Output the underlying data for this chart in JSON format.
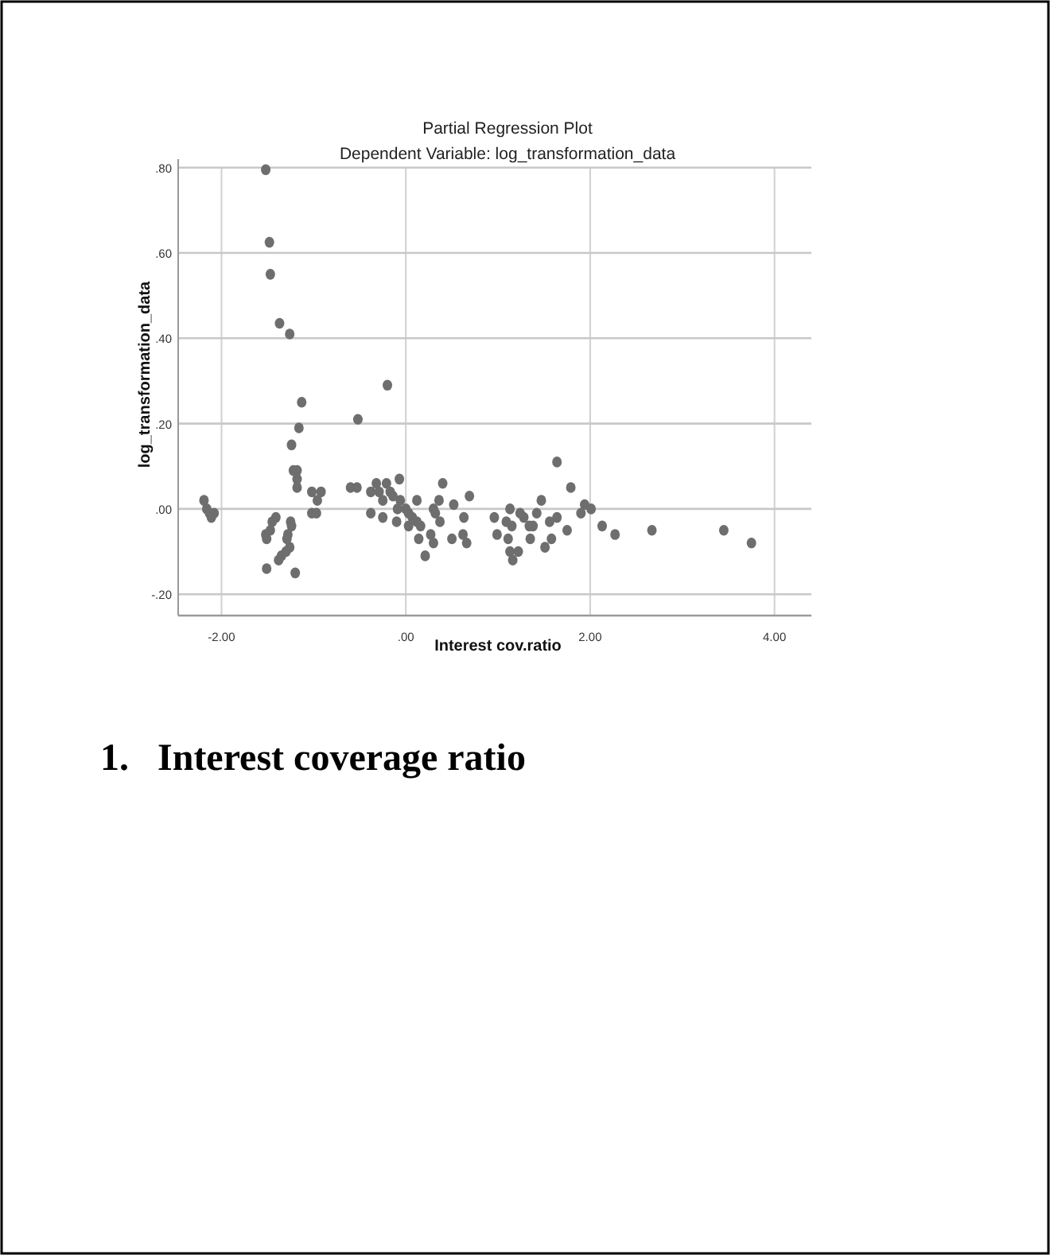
{
  "chart_data": {
    "type": "scatter",
    "title": "Partial Regression Plot",
    "subtitle": "Dependent Variable: log_transformation_data",
    "xlabel": "Interest cov.ratio",
    "ylabel": "log_transformation_data",
    "annotations": [
      "1.   Interest coverage ratio"
    ],
    "xlim": [
      -2.47,
      4.4
    ],
    "ylim": [
      -0.25,
      0.82
    ],
    "xticks": [
      {
        "value": -2,
        "label": "-2.00"
      },
      {
        "value": 0,
        "label": ".00"
      },
      {
        "value": 2,
        "label": "2.00"
      },
      {
        "value": 4,
        "label": "4.00"
      }
    ],
    "yticks": [
      {
        "value": -0.2,
        "label": "-.20"
      },
      {
        "value": 0,
        "label": ".00"
      },
      {
        "value": 0.2,
        "label": ".20"
      },
      {
        "value": 0.4,
        "label": ".40"
      },
      {
        "value": 0.6,
        "label": ".60"
      },
      {
        "value": 0.8,
        "label": ".80"
      }
    ],
    "grid": true,
    "marker": "circle",
    "series": [
      {
        "color": "#6e6e6e",
        "x": [
          -1.52,
          -1.48,
          -1.47,
          -1.37,
          -1.26,
          -0.2,
          -1.13,
          -0.52,
          -1.16,
          -1.24,
          -1.22,
          -1.18,
          -1.18,
          -1.18,
          -2.19,
          -2.16,
          -2.13,
          -2.08,
          -2.11,
          -1.02,
          -0.92,
          -0.96,
          -1.02,
          -0.97,
          -1.41,
          -1.45,
          -1.47,
          -1.52,
          -1.51,
          -1.25,
          -1.24,
          -1.28,
          -1.29,
          -1.26,
          -1.3,
          -1.35,
          -1.38,
          -1.51,
          -1.2,
          -0.6,
          -0.53,
          -0.38,
          -0.32,
          -0.29,
          -0.21,
          -0.07,
          -0.38,
          -0.25,
          -0.17,
          -0.14,
          -0.25,
          -0.1,
          -0.06,
          -0.09,
          0,
          0.03,
          0.07,
          0.12,
          0.03,
          0.12,
          0.16,
          0.14,
          0.21,
          0.27,
          0.3,
          0.3,
          0.36,
          0.4,
          0.37,
          0.32,
          0.52,
          0.5,
          0.63,
          0.62,
          0.66,
          0.69,
          1.64,
          1.79,
          1.47,
          0.96,
          0.99,
          1.09,
          1.13,
          1.15,
          1.11,
          1.13,
          1.16,
          1.22,
          1.24,
          1.28,
          1.34,
          1.38,
          1.35,
          1.42,
          1.51,
          1.56,
          1.58,
          1.64,
          1.75,
          1.9,
          1.94,
          2.01,
          2.13,
          2.27,
          2.67,
          3.45,
          3.75
        ],
        "values": [
          0.795,
          0.625,
          0.55,
          0.435,
          0.41,
          0.29,
          0.25,
          0.21,
          0.19,
          0.15,
          0.09,
          0.09,
          0.07,
          0.05,
          0.02,
          0,
          -0.01,
          -0.01,
          -0.02,
          0.04,
          0.04,
          0.02,
          -0.01,
          -0.01,
          -0.02,
          -0.03,
          -0.05,
          -0.06,
          -0.07,
          -0.03,
          -0.04,
          -0.06,
          -0.07,
          -0.09,
          -0.1,
          -0.11,
          -0.12,
          -0.14,
          -0.15,
          0.05,
          0.05,
          0.04,
          0.06,
          0.04,
          0.06,
          0.07,
          -0.01,
          0.02,
          0.04,
          0.03,
          -0.02,
          -0.03,
          0.02,
          0,
          0,
          -0.01,
          -0.02,
          0.02,
          -0.04,
          -0.03,
          -0.04,
          -0.07,
          -0.11,
          -0.06,
          -0.08,
          0,
          0.02,
          0.06,
          -0.03,
          -0.01,
          0.01,
          -0.07,
          -0.02,
          -0.06,
          -0.08,
          0.03,
          0.11,
          0.05,
          0.02,
          -0.02,
          -0.06,
          -0.03,
          0,
          -0.04,
          -0.07,
          -0.1,
          -0.12,
          -0.1,
          -0.01,
          -0.02,
          -0.04,
          -0.04,
          -0.07,
          -0.01,
          -0.09,
          -0.03,
          -0.07,
          -0.02,
          -0.05,
          -0.01,
          0.01,
          0,
          -0.04,
          -0.06,
          -0.05,
          -0.05,
          -0.08
        ]
      }
    ]
  }
}
